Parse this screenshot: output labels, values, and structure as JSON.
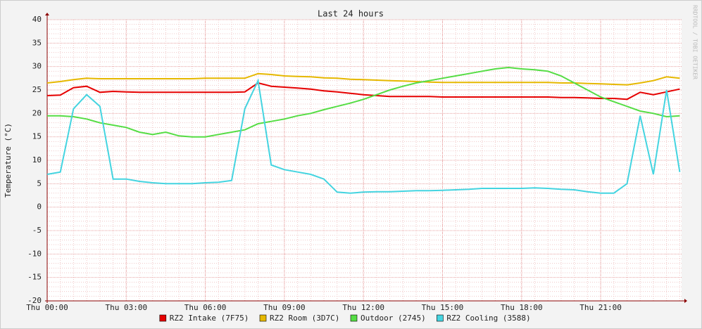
{
  "chart_data": {
    "type": "line",
    "title": "Last 24 hours",
    "y_label": "Temperature (°C)",
    "watermark": "RRDTOOL / TOBI OETIKER",
    "x": [
      0,
      0.5,
      1,
      1.5,
      2,
      2.5,
      3,
      3.5,
      4,
      4.5,
      5,
      5.5,
      6,
      6.5,
      7,
      7.5,
      8,
      8.5,
      9,
      9.5,
      10,
      10.5,
      11,
      11.5,
      12,
      12.5,
      13,
      13.5,
      14,
      14.5,
      15,
      15.5,
      16,
      16.5,
      17,
      17.5,
      18,
      18.5,
      19,
      19.5,
      20,
      20.5,
      21,
      21.5,
      22,
      22.5,
      23,
      23.5,
      24
    ],
    "xlim": [
      0,
      24.07
    ],
    "xticks": [
      {
        "value": 0,
        "label": "Thu 00:00"
      },
      {
        "value": 3,
        "label": "Thu 03:00"
      },
      {
        "value": 6,
        "label": "Thu 06:00"
      },
      {
        "value": 9,
        "label": "Thu 09:00"
      },
      {
        "value": 12,
        "label": "Thu 12:00"
      },
      {
        "value": 15,
        "label": "Thu 15:00"
      },
      {
        "value": 18,
        "label": "Thu 18:00"
      },
      {
        "value": 21,
        "label": "Thu 21:00"
      }
    ],
    "ylim": [
      -20,
      40
    ],
    "yticks": [
      -20,
      -15,
      -10,
      -5,
      0,
      5,
      10,
      15,
      20,
      25,
      30,
      35,
      40
    ],
    "grid": true,
    "legend": "bottom",
    "series": [
      {
        "name": "RZ2 Intake (7F75)",
        "color": "#e60000",
        "values": [
          23.8,
          23.9,
          25.5,
          25.8,
          24.5,
          24.7,
          24.6,
          24.5,
          24.5,
          24.5,
          24.5,
          24.5,
          24.5,
          24.5,
          24.5,
          24.6,
          26.5,
          25.8,
          25.6,
          25.4,
          25.2,
          24.8,
          24.6,
          24.3,
          24.0,
          23.8,
          23.6,
          23.6,
          23.6,
          23.6,
          23.5,
          23.5,
          23.5,
          23.5,
          23.5,
          23.5,
          23.5,
          23.5,
          23.5,
          23.4,
          23.4,
          23.3,
          23.2,
          23.2,
          23.0,
          24.5,
          24.0,
          24.6,
          25.2
        ]
      },
      {
        "name": "RZ2 Room (3D7C)",
        "color": "#e6b800",
        "values": [
          26.5,
          26.8,
          27.2,
          27.5,
          27.4,
          27.4,
          27.4,
          27.4,
          27.4,
          27.4,
          27.4,
          27.4,
          27.5,
          27.5,
          27.5,
          27.5,
          28.5,
          28.3,
          28.0,
          27.9,
          27.8,
          27.6,
          27.5,
          27.3,
          27.2,
          27.1,
          27.0,
          26.9,
          26.8,
          26.7,
          26.6,
          26.6,
          26.6,
          26.6,
          26.6,
          26.6,
          26.6,
          26.6,
          26.6,
          26.5,
          26.5,
          26.4,
          26.3,
          26.2,
          26.1,
          26.5,
          27.0,
          27.8,
          27.5
        ]
      },
      {
        "name": "Outdoor (2745)",
        "color": "#55dd44",
        "values": [
          19.5,
          19.5,
          19.3,
          18.8,
          18.0,
          17.5,
          17.0,
          16.0,
          15.5,
          16.0,
          15.2,
          15.0,
          15.0,
          15.5,
          16.0,
          16.5,
          17.8,
          18.3,
          18.8,
          19.5,
          20.0,
          20.8,
          21.5,
          22.2,
          23.0,
          24.0,
          25.0,
          25.8,
          26.5,
          27.0,
          27.5,
          28.0,
          28.5,
          29.0,
          29.5,
          29.8,
          29.5,
          29.3,
          29.0,
          28.0,
          26.5,
          25.0,
          23.5,
          22.5,
          21.5,
          20.5,
          20.0,
          19.3,
          19.5
        ]
      },
      {
        "name": "RZ2 Cooling (3588)",
        "color": "#44d4e0",
        "values": [
          7,
          7.5,
          21,
          24,
          21.5,
          6,
          6,
          5.5,
          5.2,
          5,
          5,
          5,
          5.2,
          5.3,
          5.7,
          21,
          27,
          9,
          8,
          7.5,
          7,
          6,
          3.2,
          3,
          3.2,
          3.3,
          3.3,
          3.4,
          3.5,
          3.5,
          3.6,
          3.7,
          3.8,
          4,
          4,
          4,
          4,
          4.1,
          4,
          3.8,
          3.7,
          3.3,
          3,
          3,
          5,
          19.5,
          7,
          25,
          7.5
        ]
      }
    ]
  }
}
